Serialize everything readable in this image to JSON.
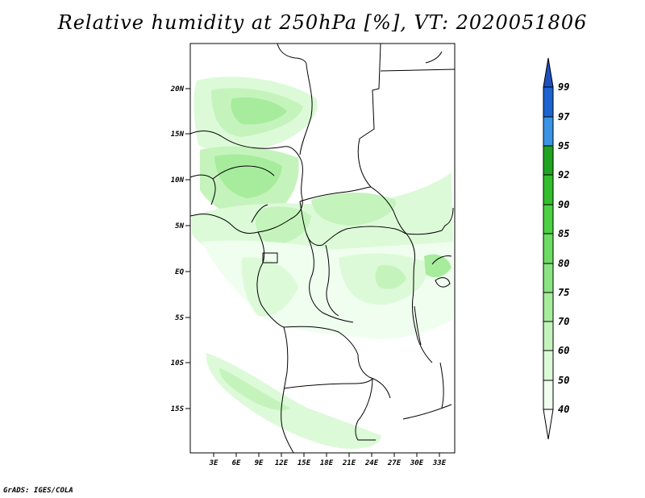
{
  "title": "Relative humidity at 250hPa [%], VT: 2020051806",
  "credit": "GrADS: IGES/COLA",
  "map": {
    "lat_labels": [
      "20N",
      "15N",
      "10N",
      "5N",
      "EQ",
      "5S",
      "10S",
      "15S"
    ],
    "lon_labels": [
      "3E",
      "6E",
      "9E",
      "12E",
      "15E",
      "18E",
      "21E",
      "24E",
      "27E",
      "30E",
      "33E"
    ]
  },
  "colorbar": {
    "levels": [
      "40",
      "50",
      "60",
      "70",
      "75",
      "80",
      "85",
      "90",
      "92",
      "95",
      "97",
      "99"
    ],
    "colors": [
      "#f0fef0",
      "#dcfad8",
      "#c4f4bc",
      "#a6ec9c",
      "#8ae482",
      "#6cdc62",
      "#4cd044",
      "#34be2e",
      "#20a420",
      "#10901c",
      "#3a94e6",
      "#1c64d0",
      "#1c50c0"
    ]
  }
}
